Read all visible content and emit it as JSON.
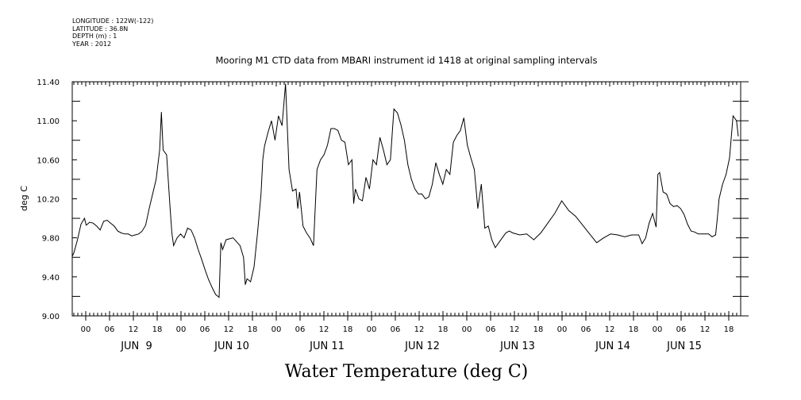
{
  "header": {
    "longitude": "LONGITUDE : 122W(-122)",
    "latitude": "LATITUDE : 36.8N",
    "depth": "DEPTH (m) : 1",
    "year": "YEAR : 2012"
  },
  "chart_data": {
    "type": "line",
    "title": "Mooring M1 CTD data from MBARI instrument id 1418 at original sampling intervals",
    "xlabel": "Water Temperature (deg C)",
    "ylabel": "deg C",
    "ylim": [
      9.0,
      11.4
    ],
    "yticks": [
      "9.00",
      "9.40",
      "9.80",
      "10.20",
      "10.60",
      "11.00",
      "11.40"
    ],
    "xlim_hours": [
      -6,
      162
    ],
    "hour_tick_labels": [
      "00",
      "06",
      "12",
      "18",
      "00",
      "06",
      "12",
      "18",
      "00",
      "06",
      "12",
      "18",
      "00",
      "06",
      "12",
      "18",
      "00",
      "06",
      "12",
      "18",
      "00",
      "06",
      "12",
      "18",
      "00",
      "06",
      "12",
      "18"
    ],
    "day_labels": [
      "JUN  9",
      "JUN 10",
      "JUN 11",
      "JUN 12",
      "JUN 13",
      "JUN 14",
      "JUN 15"
    ],
    "grid": false,
    "series": [
      {
        "values": [
          [
            -6,
            9.61
          ],
          [
            -5.5,
            9.65
          ],
          [
            -4.5,
            9.78
          ],
          [
            -3.5,
            9.94
          ],
          [
            -2.5,
            10.0
          ],
          [
            -2,
            9.93
          ],
          [
            -1,
            9.96
          ],
          [
            0,
            9.95
          ],
          [
            1,
            9.92
          ],
          [
            2,
            9.88
          ],
          [
            3,
            9.97
          ],
          [
            4,
            9.98
          ],
          [
            5,
            9.95
          ],
          [
            6,
            9.92
          ],
          [
            7,
            9.87
          ],
          [
            8,
            9.85
          ],
          [
            9,
            9.84
          ],
          [
            10,
            9.84
          ],
          [
            11,
            9.82
          ],
          [
            12,
            9.83
          ],
          [
            13,
            9.84
          ],
          [
            14,
            9.87
          ],
          [
            15,
            9.93
          ],
          [
            16,
            10.1
          ],
          [
            17,
            10.25
          ],
          [
            18,
            10.4
          ],
          [
            19,
            10.7
          ],
          [
            19.5,
            11.09
          ],
          [
            20,
            10.7
          ],
          [
            21,
            10.65
          ],
          [
            22,
            10.1
          ],
          [
            22.5,
            9.85
          ],
          [
            23,
            9.72
          ],
          [
            24,
            9.8
          ],
          [
            25,
            9.84
          ],
          [
            26,
            9.8
          ],
          [
            27,
            9.9
          ],
          [
            28,
            9.88
          ],
          [
            29,
            9.8
          ],
          [
            30,
            9.68
          ],
          [
            31,
            9.58
          ],
          [
            32,
            9.47
          ],
          [
            33,
            9.37
          ],
          [
            34,
            9.29
          ],
          [
            35,
            9.22
          ],
          [
            36,
            9.19
          ],
          [
            36.5,
            9.75
          ],
          [
            37,
            9.68
          ],
          [
            38,
            9.78
          ],
          [
            39,
            9.79
          ],
          [
            40,
            9.8
          ],
          [
            41,
            9.76
          ],
          [
            42,
            9.72
          ],
          [
            43,
            9.6
          ],
          [
            43.5,
            9.32
          ],
          [
            44,
            9.38
          ],
          [
            45,
            9.35
          ],
          [
            46,
            9.5
          ],
          [
            47,
            9.85
          ],
          [
            48,
            10.25
          ],
          [
            48.5,
            10.6
          ],
          [
            49,
            10.74
          ],
          [
            50,
            10.88
          ],
          [
            51,
            11.0
          ],
          [
            52,
            10.8
          ],
          [
            53,
            11.05
          ],
          [
            54,
            10.95
          ],
          [
            55,
            11.38
          ],
          [
            56,
            10.5
          ],
          [
            57,
            10.28
          ],
          [
            58,
            10.3
          ],
          [
            58.5,
            10.1
          ],
          [
            59,
            10.27
          ],
          [
            60,
            9.92
          ],
          [
            61,
            9.85
          ],
          [
            62,
            9.8
          ],
          [
            63,
            9.72
          ],
          [
            64,
            10.5
          ],
          [
            65,
            10.6
          ],
          [
            66,
            10.65
          ],
          [
            67,
            10.75
          ],
          [
            68,
            10.92
          ],
          [
            69,
            10.92
          ],
          [
            70,
            10.9
          ],
          [
            71,
            10.8
          ],
          [
            72,
            10.78
          ],
          [
            73,
            10.55
          ],
          [
            74,
            10.6
          ],
          [
            74.5,
            10.15
          ],
          [
            75,
            10.3
          ],
          [
            76,
            10.2
          ],
          [
            77,
            10.18
          ],
          [
            78,
            10.42
          ],
          [
            79,
            10.3
          ],
          [
            80,
            10.6
          ],
          [
            81,
            10.55
          ],
          [
            82,
            10.83
          ],
          [
            83,
            10.7
          ],
          [
            84,
            10.55
          ],
          [
            85,
            10.6
          ],
          [
            86,
            11.12
          ],
          [
            87,
            11.08
          ],
          [
            88,
            10.96
          ],
          [
            89,
            10.8
          ],
          [
            90,
            10.55
          ],
          [
            91,
            10.4
          ],
          [
            92,
            10.3
          ],
          [
            93,
            10.25
          ],
          [
            94,
            10.25
          ],
          [
            95,
            10.2
          ],
          [
            96,
            10.22
          ],
          [
            97,
            10.35
          ],
          [
            98,
            10.57
          ],
          [
            99,
            10.45
          ],
          [
            100,
            10.35
          ],
          [
            101,
            10.5
          ],
          [
            102,
            10.45
          ],
          [
            103,
            10.78
          ],
          [
            104,
            10.85
          ],
          [
            105,
            10.9
          ],
          [
            106,
            11.03
          ],
          [
            107,
            10.75
          ],
          [
            108,
            10.62
          ],
          [
            109,
            10.5
          ],
          [
            110,
            10.1
          ],
          [
            111,
            10.35
          ],
          [
            112,
            9.9
          ],
          [
            113,
            9.92
          ],
          [
            114,
            9.78
          ],
          [
            115,
            9.7
          ],
          [
            116,
            9.75
          ],
          [
            117,
            9.8
          ],
          [
            118,
            9.85
          ],
          [
            119,
            9.87
          ],
          [
            120,
            9.85
          ],
          [
            122,
            9.83
          ],
          [
            124,
            9.84
          ],
          [
            126,
            9.78
          ],
          [
            128,
            9.85
          ],
          [
            130,
            9.95
          ],
          [
            132,
            10.05
          ],
          [
            134,
            10.18
          ],
          [
            136,
            10.08
          ],
          [
            138,
            10.02
          ],
          [
            140,
            9.93
          ],
          [
            142,
            9.84
          ],
          [
            144,
            9.75
          ],
          [
            146,
            9.8
          ],
          [
            148,
            9.84
          ],
          [
            150,
            9.83
          ],
          [
            152,
            9.81
          ],
          [
            154,
            9.83
          ],
          [
            156,
            9.83
          ],
          [
            157,
            9.74
          ],
          [
            158,
            9.8
          ],
          [
            159,
            9.95
          ],
          [
            160,
            10.05
          ],
          [
            161,
            9.91
          ],
          [
            161.5,
            10.45
          ],
          [
            162,
            10.47
          ],
          [
            163,
            10.27
          ],
          [
            164,
            10.25
          ],
          [
            165,
            10.15
          ],
          [
            166,
            10.12
          ],
          [
            167,
            10.13
          ],
          [
            168,
            10.1
          ],
          [
            169,
            10.04
          ],
          [
            170,
            9.94
          ],
          [
            171,
            9.87
          ],
          [
            172,
            9.86
          ],
          [
            173,
            9.84
          ],
          [
            174,
            9.84
          ],
          [
            175,
            9.84
          ],
          [
            176,
            9.84
          ],
          [
            177,
            9.81
          ],
          [
            178,
            9.83
          ],
          [
            178.5,
            10.0
          ],
          [
            179,
            10.2
          ],
          [
            180,
            10.35
          ],
          [
            181,
            10.45
          ],
          [
            182,
            10.62
          ],
          [
            183,
            11.05
          ],
          [
            184,
            11.0
          ],
          [
            184.5,
            10.84
          ]
        ]
      }
    ]
  }
}
